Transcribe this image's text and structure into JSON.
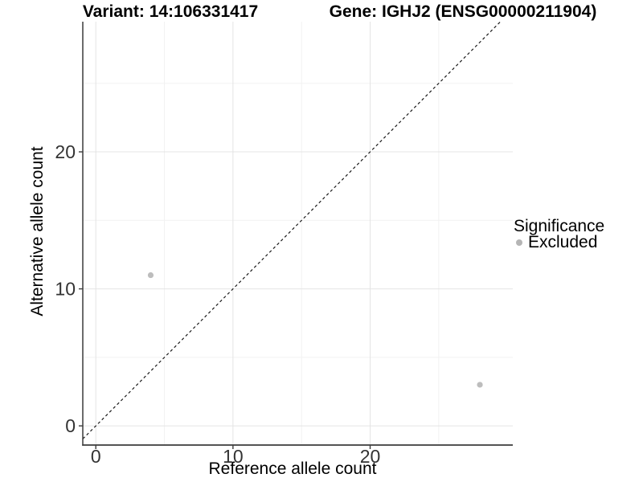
{
  "colors": {
    "background": "#ffffff",
    "grid_major": "#e4e4e4",
    "grid_minor": "#f2f2f2",
    "axis_line": "#3c3c3c",
    "tick_text": "#333333",
    "title_text": "#000000",
    "point": "#bdbdbd",
    "reference_line": "#1a1a1a"
  },
  "chart_data": {
    "type": "scatter",
    "title_left": "Variant: 14:106331417",
    "title_right": "Gene: IGHJ2 (ENSG00000211904)",
    "xlabel": "Reference allele count",
    "ylabel": "Alternative allele count",
    "xlim": [
      -0.95,
      30.4
    ],
    "ylim": [
      -1.4,
      29.5
    ],
    "x_ticks": [
      0,
      10,
      20
    ],
    "y_ticks": [
      0,
      10,
      20
    ],
    "x_minor": [
      5,
      15,
      25
    ],
    "y_minor": [
      5,
      15,
      25
    ],
    "grid": true,
    "legend_position": "right",
    "series": [
      {
        "name": "Excluded",
        "color": "#bdbdbd",
        "points": [
          {
            "x": 4,
            "y": 11
          },
          {
            "x": 28,
            "y": 3
          }
        ]
      }
    ],
    "reference_line": {
      "type": "identity",
      "slope": 1,
      "intercept": 0,
      "style": "dashed"
    },
    "legend": {
      "title": "Significance",
      "items": [
        {
          "label": "Excluded",
          "color": "#b5b5b5"
        }
      ]
    }
  }
}
